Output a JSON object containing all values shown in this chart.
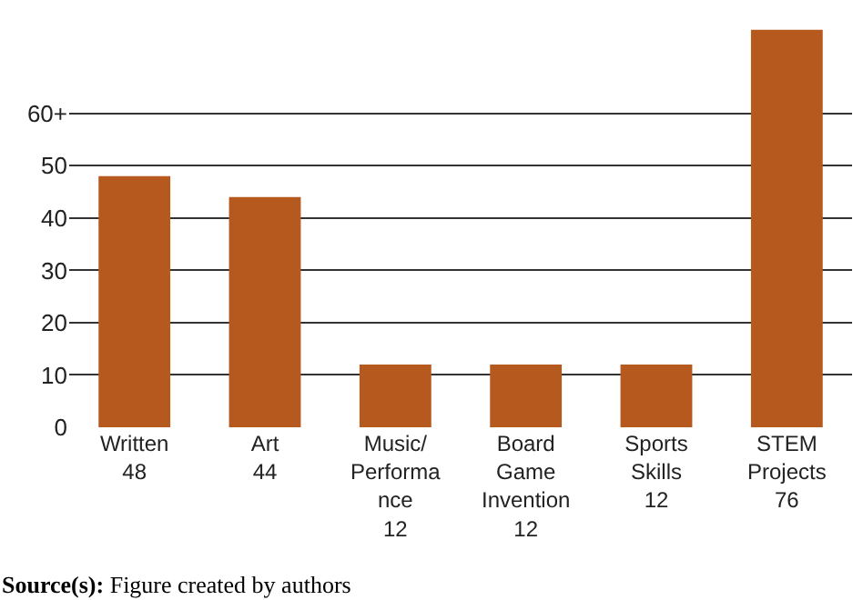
{
  "chart_data": {
    "type": "bar",
    "categories": [
      "Written\n48",
      "Art\n44",
      "Music/\nPerforma\nnce\n12",
      "Board\nGame\nInvention\n12",
      "Sports\nSkills\n12",
      "STEM\nProjects\n76"
    ],
    "values": [
      48,
      44,
      12,
      12,
      12,
      76
    ],
    "color": "#b5591f",
    "ylim": [
      0,
      81
    ],
    "yticks": [
      0,
      10,
      20,
      30,
      40,
      50,
      {
        "value": 60,
        "label": "60+"
      }
    ],
    "grid": "y",
    "annotations": [
      "Source(s): Figure created by authors"
    ]
  }
}
